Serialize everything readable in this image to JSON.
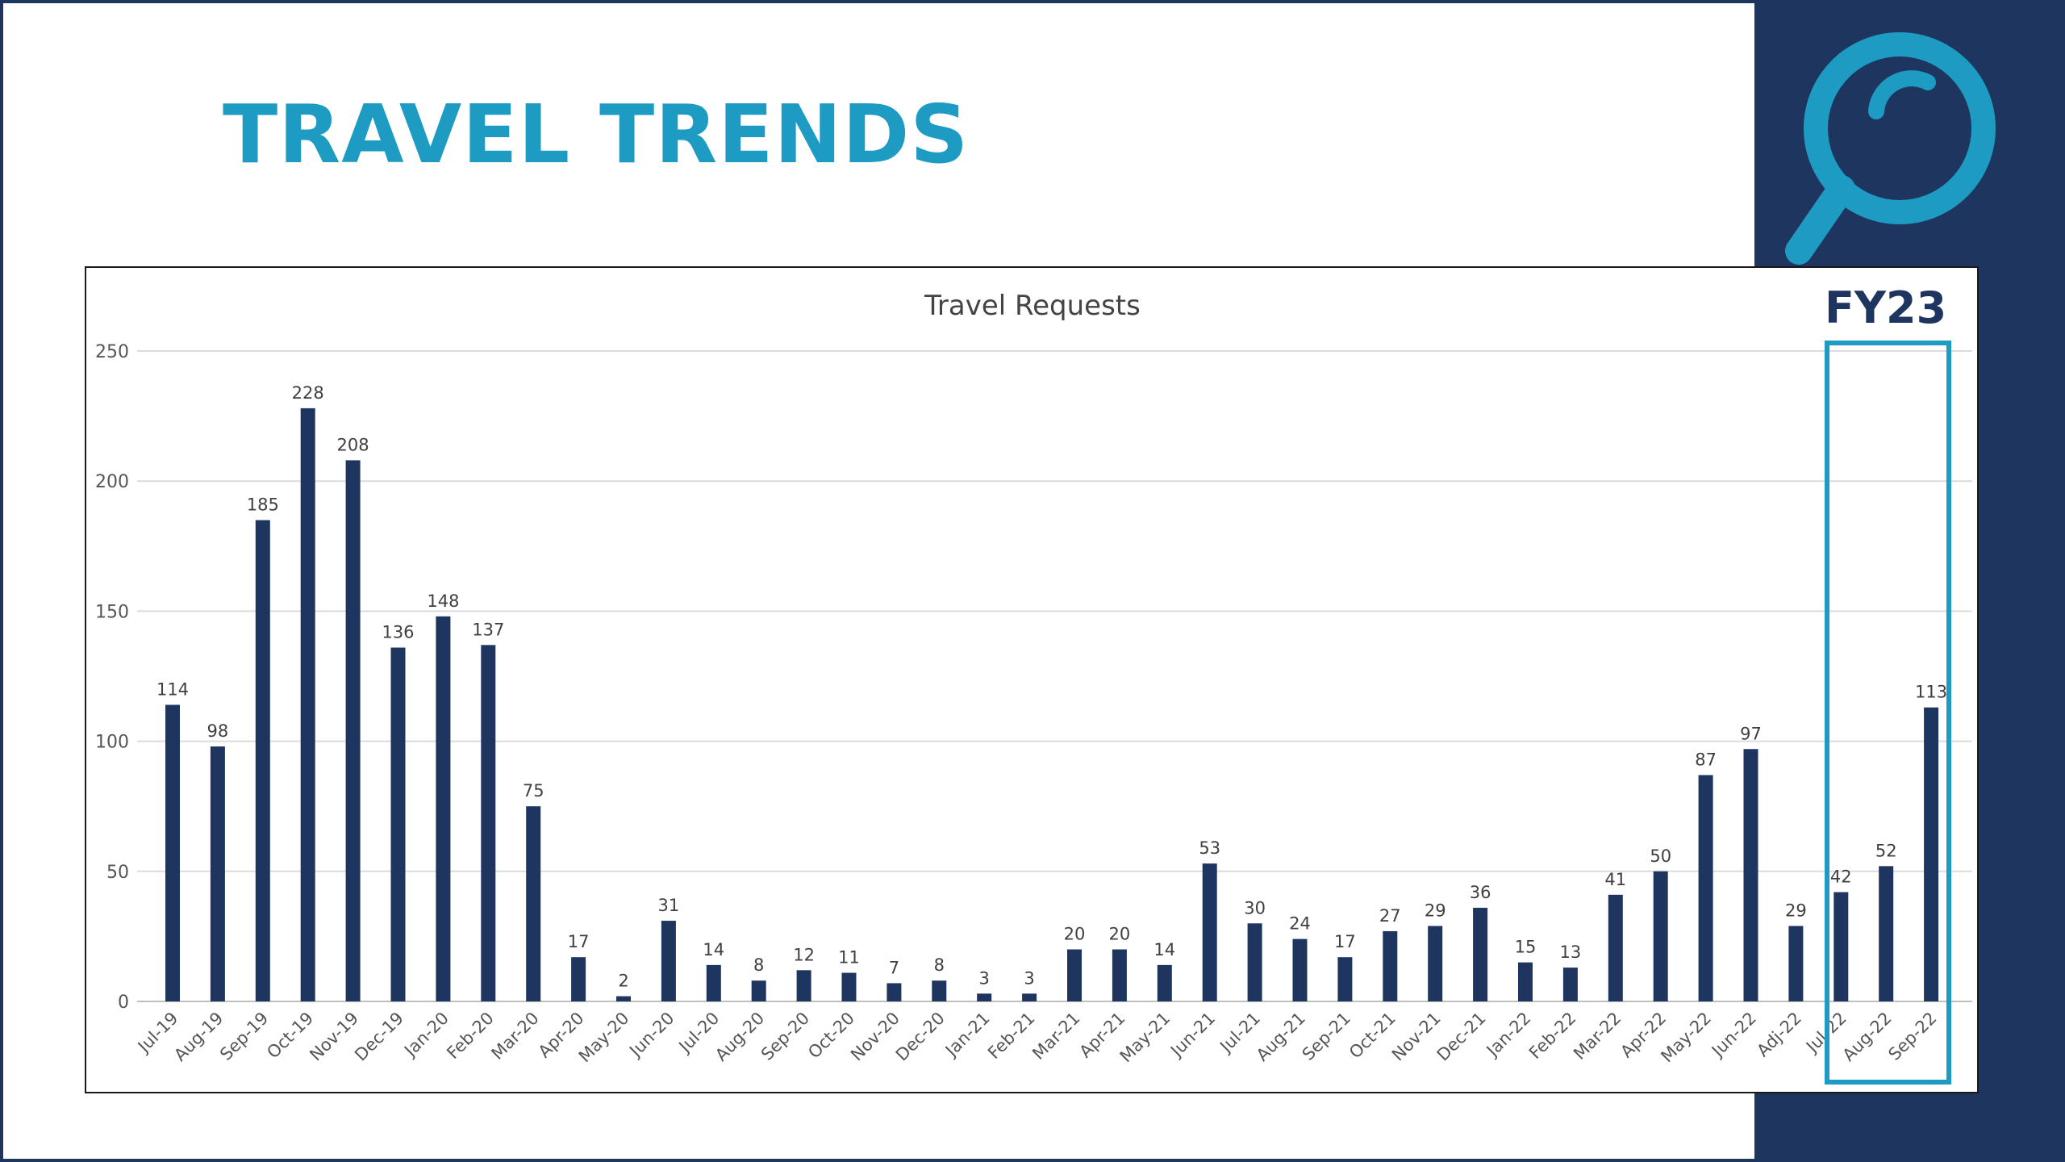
{
  "slide": {
    "title": "TRAVEL TRENDS",
    "highlight_label": "FY23",
    "colors": {
      "title": "#1d9bc2",
      "panel": "#1e3560",
      "highlight": "#1d9bc2",
      "bar": "#1e3560"
    },
    "icons": [
      "magnifier-icon"
    ]
  },
  "chart_data": {
    "type": "bar",
    "title": "Travel Requests",
    "xlabel": "",
    "ylabel": "",
    "ylim": [
      0,
      250
    ],
    "yticks": [
      0,
      50,
      100,
      150,
      200,
      250
    ],
    "grid": true,
    "legend": "none",
    "categories": [
      "Jul-19",
      "Aug-19",
      "Sep-19",
      "Oct-19",
      "Nov-19",
      "Dec-19",
      "Jan-20",
      "Feb-20",
      "Mar-20",
      "Apr-20",
      "May-20",
      "Jun-20",
      "Jul-20",
      "Aug-20",
      "Sep-20",
      "Oct-20",
      "Nov-20",
      "Dec-20",
      "Jan-21",
      "Feb-21",
      "Mar-21",
      "Apr-21",
      "May-21",
      "Jun-21",
      "Jul-21",
      "Aug-21",
      "Sep-21",
      "Oct-21",
      "Nov-21",
      "Dec-21",
      "Jan-22",
      "Feb-22",
      "Mar-22",
      "Apr-22",
      "May-22",
      "Jun-22",
      "Adj-22",
      "Jul-22",
      "Aug-22",
      "Sep-22"
    ],
    "values": [
      114,
      98,
      185,
      228,
      208,
      136,
      148,
      137,
      75,
      17,
      2,
      31,
      14,
      8,
      12,
      11,
      7,
      8,
      3,
      3,
      20,
      20,
      14,
      53,
      30,
      24,
      17,
      27,
      29,
      36,
      15,
      13,
      41,
      50,
      87,
      97,
      29,
      42,
      52,
      113
    ],
    "highlighted_categories": [
      "Jul-22",
      "Aug-22",
      "Sep-22"
    ]
  }
}
